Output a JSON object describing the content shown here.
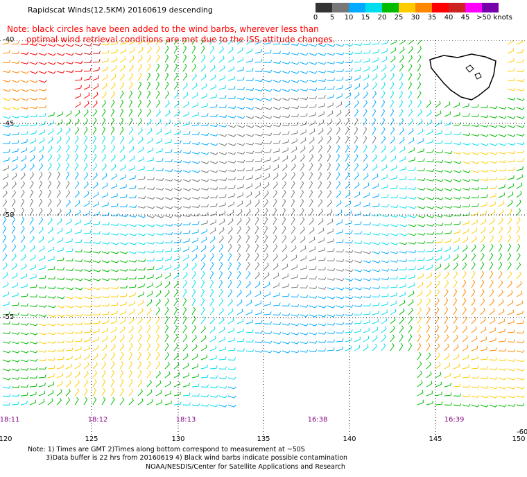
{
  "header": {
    "title": "Rapidscat Winds(12.5KM) 20160619 descending",
    "note_line1": "Note: black circles have been added to the wind barbs, wherever less than",
    "note_line2": "optimal wind retrieval conditions are met due to the ISS attitude changes."
  },
  "legend": {
    "labels": [
      "0",
      "5",
      "10",
      "15",
      "20",
      "25",
      "30",
      "35",
      "40",
      "45",
      ">50 knots"
    ],
    "colors": [
      "#333333",
      "#777777",
      "#00aaff",
      "#00ddee",
      "#00bb00",
      "#ffcc00",
      "#ff8800",
      "#ff0000",
      "#cc2222",
      "#ff00ff",
      "#7700aa"
    ]
  },
  "axes": {
    "lat_labels": [
      "-40",
      "-45",
      "-50",
      "-55",
      "-60"
    ],
    "lon_labels": [
      "120",
      "125",
      "130",
      "135",
      "140",
      "145",
      "150"
    ]
  },
  "times": [
    "18:11",
    "18:12",
    "18:13",
    "16:38",
    "16:39"
  ],
  "footer": {
    "line1": "Note: 1) Times are GMT 2)Times along bottom correspond to measurement at ~50S",
    "line2": "3)Data buffer is 22 hrs from 20160619 4) Black wind barbs indicate possible contamination",
    "line3": "NOAA/NESDIS/Center for Satellite Applications and Research"
  }
}
